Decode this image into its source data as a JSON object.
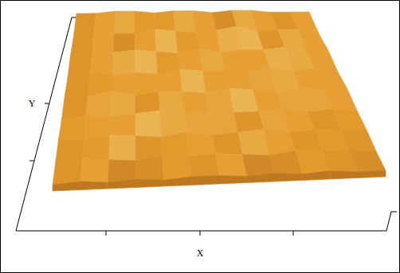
{
  "chart_data": {
    "type": "surface",
    "x_label": "X",
    "y_label": "Y",
    "tick_labels": false,
    "color": "#e39a2c",
    "zlim": [
      0,
      10
    ],
    "z": [
      [
        3,
        4,
        3,
        4,
        3,
        4,
        4,
        3,
        4,
        3,
        4,
        3,
        3
      ],
      [
        4,
        5,
        4,
        3,
        5,
        4,
        5,
        4,
        3,
        5,
        4,
        4,
        3
      ],
      [
        5,
        4,
        6,
        5,
        4,
        6,
        4,
        5,
        6,
        4,
        5,
        4,
        4
      ],
      [
        4,
        6,
        5,
        6,
        7,
        5,
        6,
        5,
        5,
        6,
        4,
        5,
        4
      ],
      [
        5,
        5,
        7,
        5,
        6,
        6,
        5,
        7,
        6,
        5,
        6,
        5,
        5
      ],
      [
        4,
        6,
        5,
        6,
        5,
        7,
        6,
        6,
        5,
        7,
        5,
        6,
        4
      ],
      [
        5,
        5,
        6,
        7,
        6,
        5,
        7,
        5,
        6,
        6,
        7,
        5,
        5
      ],
      [
        4,
        6,
        5,
        5,
        7,
        6,
        5,
        6,
        8,
        5,
        6,
        6,
        4
      ],
      [
        5,
        5,
        6,
        6,
        5,
        6,
        6,
        5,
        6,
        6,
        5,
        5,
        5
      ]
    ]
  }
}
